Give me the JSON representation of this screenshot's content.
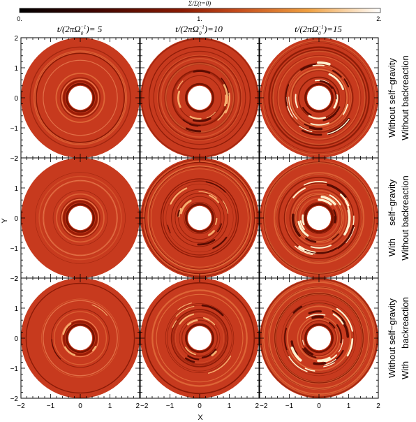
{
  "colorbar": {
    "label": "Σ/Σ(t=0)",
    "ticks": [
      "0.",
      "1.",
      "2."
    ],
    "colors": [
      "#000000",
      "#6e0a00",
      "#c44a1a",
      "#f0a040",
      "#ffffff"
    ]
  },
  "columns": [
    {
      "title": "t/(2πΩ0−1)= 5",
      "prefix": "t/(2πΩ",
      "sup": "−1",
      "suffix": ")= 5"
    },
    {
      "title": "t/(2πΩ0−1)=10",
      "prefix": "t/(2πΩ",
      "sup": "−1",
      "suffix": ")=10"
    },
    {
      "title": "t/(2πΩ0−1)=15",
      "prefix": "t/(2πΩ",
      "sup": "−1",
      "suffix": ")=15"
    }
  ],
  "rows": [
    {
      "left": "Without self−gravity",
      "right": "Without backreaction"
    },
    {
      "left": "With     self−gravity",
      "right": "Without backreaction"
    },
    {
      "left": "Without self−gravity",
      "right": "With     backreaction"
    }
  ],
  "axes": {
    "xlabel": "X",
    "ylabel": "Y",
    "xticks": [
      "−2",
      "−1",
      "0",
      "1",
      "2"
    ],
    "yticks": [
      "−2",
      "−1",
      "0",
      "1",
      "2"
    ],
    "xlim": [
      -2,
      2
    ],
    "ylim": [
      -2,
      2
    ]
  },
  "chart_data": {
    "type": "heatmap",
    "xlabel": "X",
    "ylabel": "Y",
    "xlim": [
      -2,
      2
    ],
    "ylim": [
      -2,
      2
    ],
    "colorbar_range": [
      0,
      2
    ],
    "panels": [
      {
        "row": 0,
        "col": 0,
        "time": 5,
        "inner_radius": 0.4,
        "outer_radius": 2.0,
        "structure": "smooth rings"
      },
      {
        "row": 0,
        "col": 1,
        "time": 10,
        "inner_radius": 0.4,
        "outer_radius": 2.0,
        "structure": "spiral arms, vortices"
      },
      {
        "row": 0,
        "col": 2,
        "time": 15,
        "inner_radius": 0.4,
        "outer_radius": 2.0,
        "structure": "strong clumps"
      },
      {
        "row": 1,
        "col": 0,
        "time": 5,
        "inner_radius": 0.4,
        "outer_radius": 2.0,
        "structure": "smooth rings"
      },
      {
        "row": 1,
        "col": 1,
        "time": 10,
        "inner_radius": 0.4,
        "outer_radius": 2.0,
        "structure": "spiral arms"
      },
      {
        "row": 1,
        "col": 2,
        "time": 15,
        "inner_radius": 0.4,
        "outer_radius": 2.0,
        "structure": "strong clumps"
      },
      {
        "row": 2,
        "col": 0,
        "time": 5,
        "inner_radius": 0.4,
        "outer_radius": 2.0,
        "structure": "rings with arcs"
      },
      {
        "row": 2,
        "col": 1,
        "time": 10,
        "inner_radius": 0.4,
        "outer_radius": 2.0,
        "structure": "rings with clumps"
      },
      {
        "row": 2,
        "col": 2,
        "time": 15,
        "inner_radius": 0.4,
        "outer_radius": 2.0,
        "structure": "turbulent spirals"
      }
    ]
  }
}
